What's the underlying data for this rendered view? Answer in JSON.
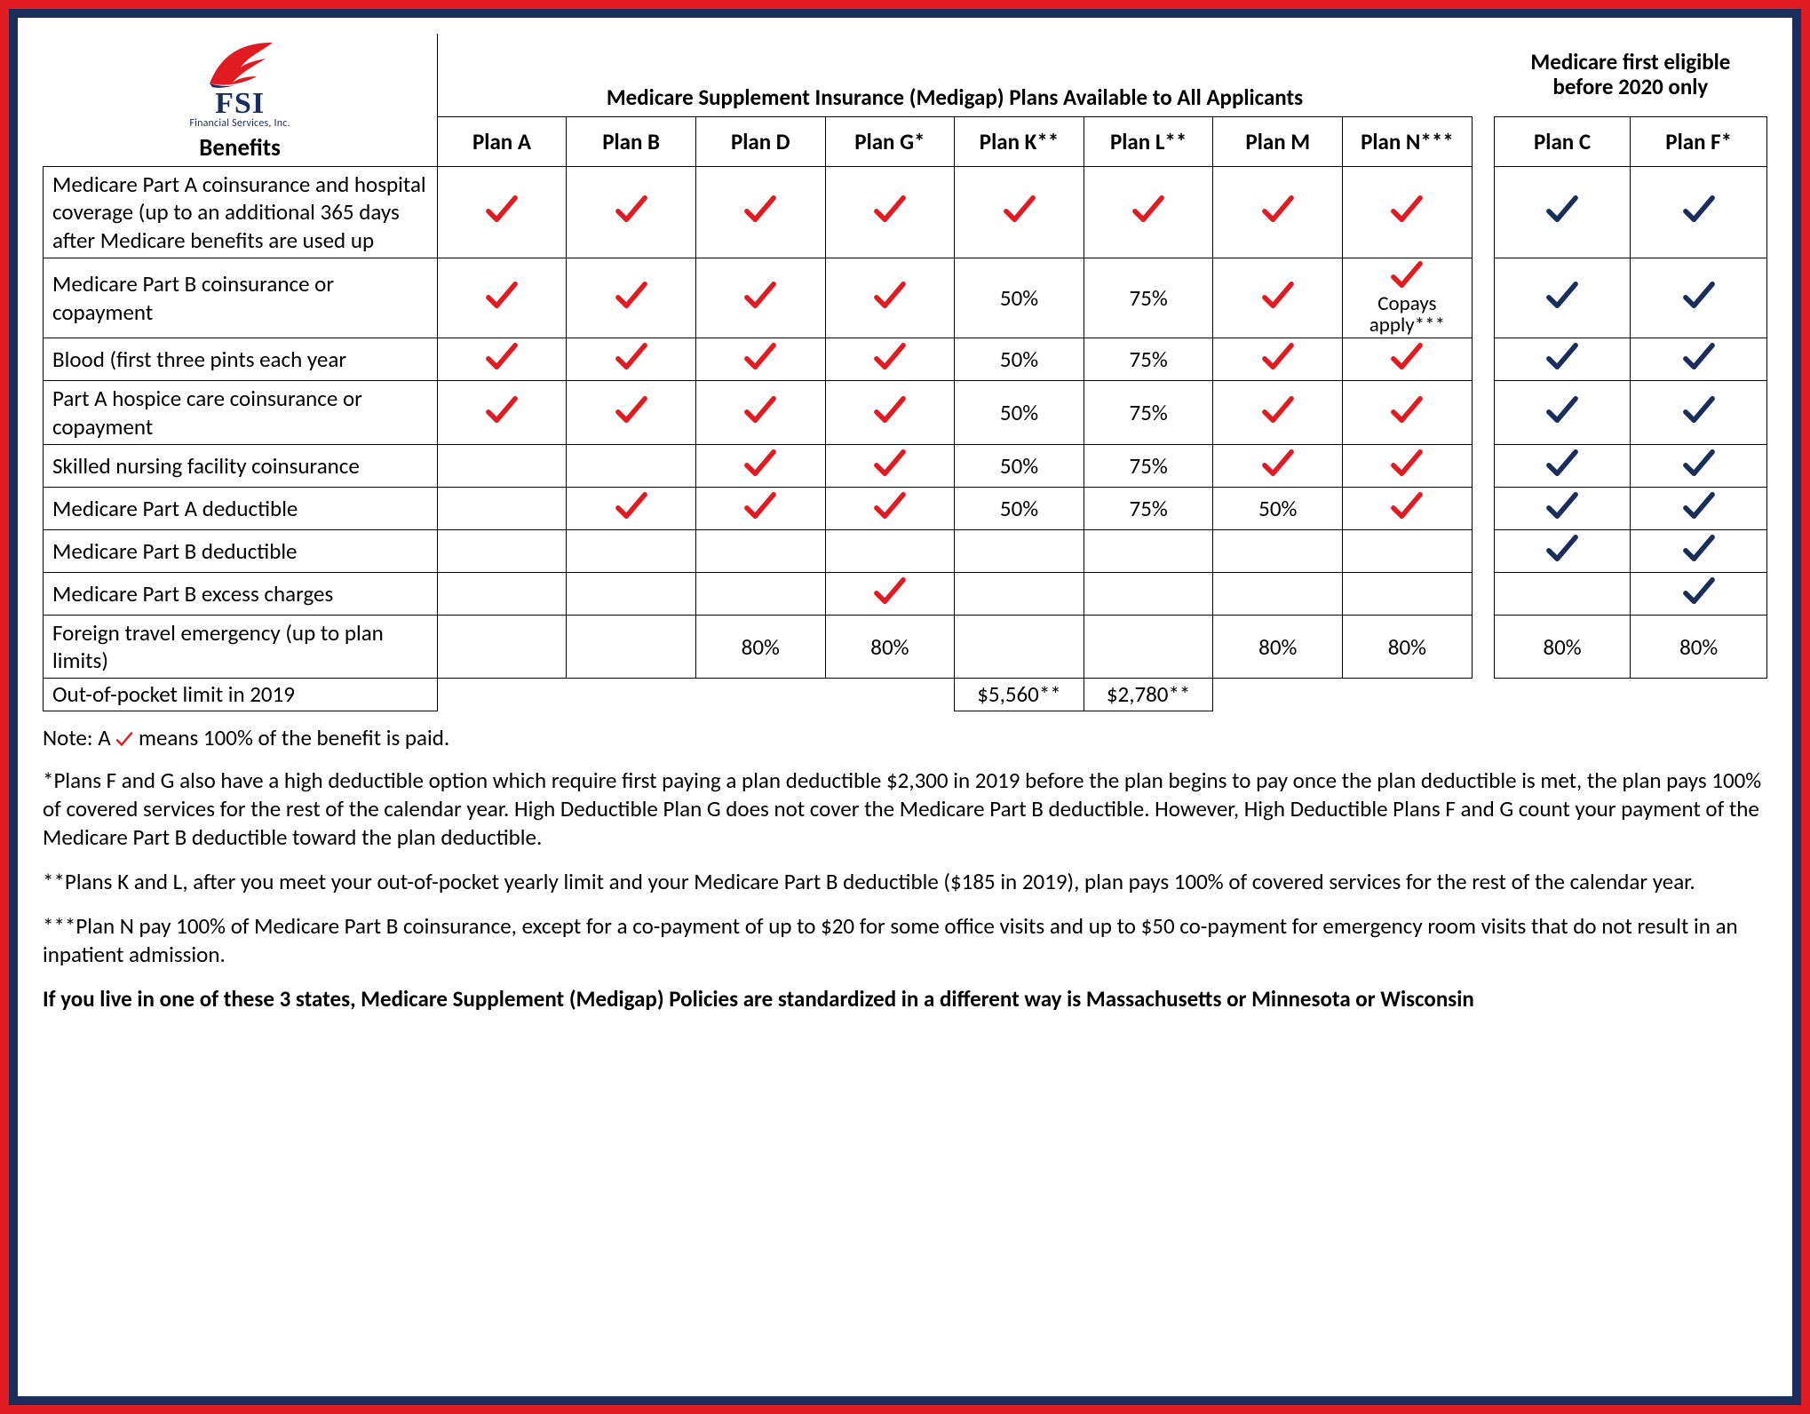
{
  "logo": {
    "company": "FSI",
    "tagline": "Financial Services, Inc."
  },
  "headers": {
    "benefits": "Benefits",
    "group1": "Medicare Supplement Insurance (Medigap) Plans Available to All Applicants",
    "group2_line1": "Medicare first eligible",
    "group2_line2": "before 2020 only",
    "plans": [
      "Plan A",
      "Plan B",
      "Plan D",
      "Plan G*",
      "Plan K**",
      "Plan L**",
      "Plan M",
      "Plan N***"
    ],
    "plans2": [
      "Plan C",
      "Plan F*"
    ]
  },
  "colors": {
    "check_red": "#e11b22",
    "check_blue": "#1a2e5c",
    "frame_outer": "#e11b22",
    "frame_inner": "#1a2e5c"
  },
  "copays_label": "Copays apply***",
  "benefits": [
    {
      "label": "Medicare Part A coinsurance and hospital coverage (up to an additional 365 days after Medicare benefits are used up",
      "cells": [
        "check",
        "check",
        "check",
        "check",
        "check",
        "check",
        "check",
        "check"
      ],
      "cells2": [
        "check",
        "check"
      ]
    },
    {
      "label": "Medicare Part B coinsurance or copayment",
      "cells": [
        "check",
        "check",
        "check",
        "check",
        "50%",
        "75%",
        "check",
        "copays"
      ],
      "cells2": [
        "check",
        "check"
      ]
    },
    {
      "label": "Blood (first three pints each year",
      "cells": [
        "check",
        "check",
        "check",
        "check",
        "50%",
        "75%",
        "check",
        "check"
      ],
      "cells2": [
        "check",
        "check"
      ]
    },
    {
      "label": "Part A hospice care coinsurance or copayment",
      "cells": [
        "check",
        "check",
        "check",
        "check",
        "50%",
        "75%",
        "check",
        "check"
      ],
      "cells2": [
        "check",
        "check"
      ]
    },
    {
      "label": "Skilled nursing facility coinsurance",
      "cells": [
        "",
        "",
        "check",
        "check",
        "50%",
        "75%",
        "check",
        "check"
      ],
      "cells2": [
        "check",
        "check"
      ]
    },
    {
      "label": "Medicare Part A deductible",
      "cells": [
        "",
        "check",
        "check",
        "check",
        "50%",
        "75%",
        "50%",
        "check"
      ],
      "cells2": [
        "check",
        "check"
      ]
    },
    {
      "label": "Medicare Part B deductible",
      "cells": [
        "",
        "",
        "",
        "",
        "",
        "",
        "",
        ""
      ],
      "cells2": [
        "check",
        "check"
      ]
    },
    {
      "label": "Medicare Part B excess charges",
      "cells": [
        "",
        "",
        "",
        "check",
        "",
        "",
        "",
        ""
      ],
      "cells2": [
        "",
        "check"
      ]
    },
    {
      "label": "Foreign travel emergency (up to plan limits)",
      "cells": [
        "",
        "",
        "80%",
        "80%",
        "",
        "",
        "80%",
        "80%"
      ],
      "cells2": [
        "80%",
        "80%"
      ]
    }
  ],
  "oop_row": {
    "label": "Out-of-pocket limit in 2019",
    "planK": "$5,560**",
    "planL": "$2,780**"
  },
  "notes": {
    "note_checkmeans_pre": "Note: A ",
    "note_checkmeans_post": " means 100% of the benefit is paid.",
    "star1": "*Plans F and G also have a high deductible option which require first paying a plan deductible $2,300 in 2019 before the plan begins to pay once the plan deductible is met, the plan pays 100% of covered services for the rest of the calendar year. High Deductible Plan G does not cover the Medicare Part B deductible. However, High Deductible Plans F and G count your payment of the Medicare Part B deductible toward the plan deductible.",
    "star2": "**Plans K and L, after you meet your out-of-pocket yearly limit and your Medicare Part B deductible ($185 in 2019), plan pays 100% of covered services for the rest of the calendar year.",
    "star3": "***Plan N pay 100% of Medicare Part B coinsurance, except for a co-payment of up to $20 for some office visits and up to $50 co-payment for emergency room visits that do not result in an inpatient admission.",
    "boldline": "If you live in one of these 3 states, Medicare Supplement (Medigap) Policies are standardized in a different way is Massachusetts or Minnesota or Wisconsin"
  }
}
